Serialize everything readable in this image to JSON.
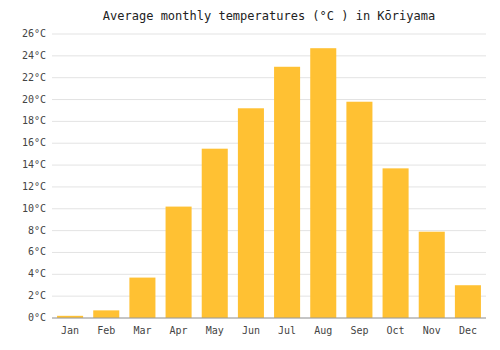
{
  "chart_data": {
    "type": "bar",
    "title": "Average monthly temperatures (°C ) in Kōriyama",
    "categories": [
      "Jan",
      "Feb",
      "Mar",
      "Apr",
      "May",
      "Jun",
      "Jul",
      "Aug",
      "Sep",
      "Oct",
      "Nov",
      "Dec"
    ],
    "values": [
      0.2,
      0.7,
      3.7,
      10.2,
      15.5,
      19.2,
      23.0,
      24.7,
      19.8,
      13.7,
      7.9,
      3.0
    ],
    "color": "#FFC133",
    "ylim": [
      0,
      26
    ],
    "yticks": [
      {
        "value": 0,
        "label": "0°C"
      },
      {
        "value": 2,
        "label": "2°C"
      },
      {
        "value": 4,
        "label": "4°C"
      },
      {
        "value": 6,
        "label": "6°C"
      },
      {
        "value": 8,
        "label": "8°C"
      },
      {
        "value": 10,
        "label": "10°C"
      },
      {
        "value": 12,
        "label": "12°C"
      },
      {
        "value": 14,
        "label": "14°C"
      },
      {
        "value": 16,
        "label": "16°C"
      },
      {
        "value": 18,
        "label": "18°C"
      },
      {
        "value": 20,
        "label": "20°C"
      },
      {
        "value": 22,
        "label": "22°C"
      },
      {
        "value": 24,
        "label": "24°C"
      },
      {
        "value": 26,
        "label": "26°C"
      }
    ],
    "grid": true
  }
}
